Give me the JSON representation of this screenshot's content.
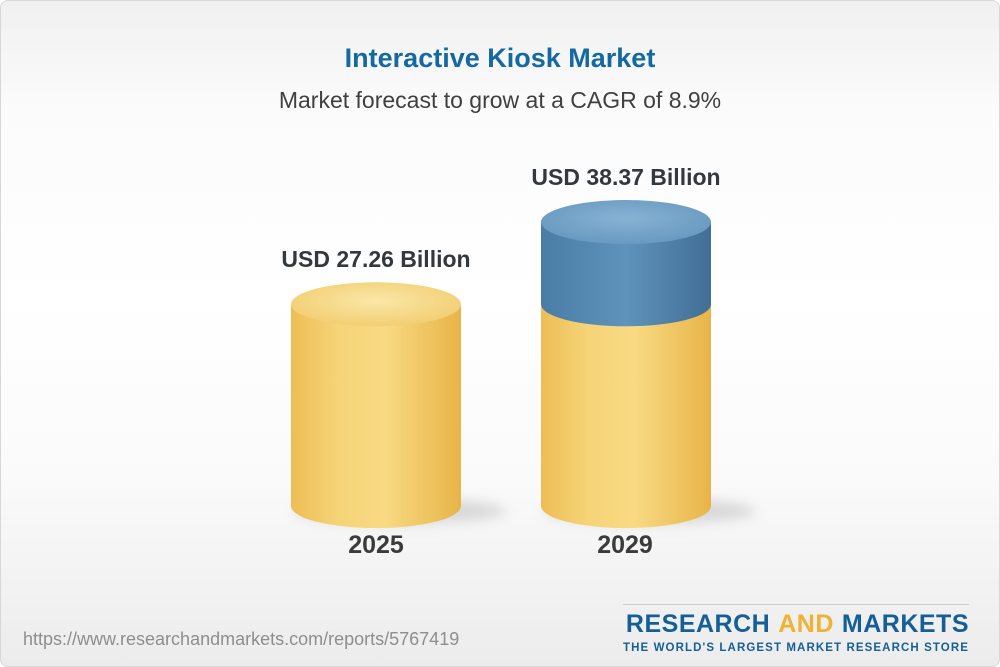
{
  "header": {
    "title": "Interactive Kiosk Market",
    "subtitle": "Market forecast to grow at a CAGR of 8.9%"
  },
  "chart_data": {
    "type": "bar",
    "subtype": "3d-cylinder",
    "title": "Interactive Kiosk Market",
    "subtitle": "Market forecast to grow at a CAGR of 8.9%",
    "cagr_percent": 8.9,
    "unit": "USD Billion",
    "categories": [
      "2025",
      "2029"
    ],
    "values": [
      27.26,
      38.37
    ],
    "value_labels": [
      "USD 27.26 Billion",
      "USD 38.37 Billion"
    ],
    "series_note": "2029 bar shows 2025 base in yellow with growth increment in blue on top",
    "ylim": [
      0,
      40
    ],
    "grid": false,
    "legend": "none",
    "colors": {
      "bar_yellow": "#f5d077",
      "bar_yellow_dark": "#e9b548",
      "bar_yellow_cap": "#f9e29c",
      "bar_blue": "#4d81a9",
      "bar_blue_cap": "#7fabce",
      "title_blue": "#1569a1",
      "label_dark": "#33383d"
    }
  },
  "footer": {
    "url": "https://www.researchandmarkets.com/reports/5767419",
    "logo_text_1": "RESEARCH",
    "logo_text_2": "AND",
    "logo_text_3": "MARKETS",
    "logo_tagline": "THE WORLD'S LARGEST MARKET RESEARCH STORE"
  }
}
